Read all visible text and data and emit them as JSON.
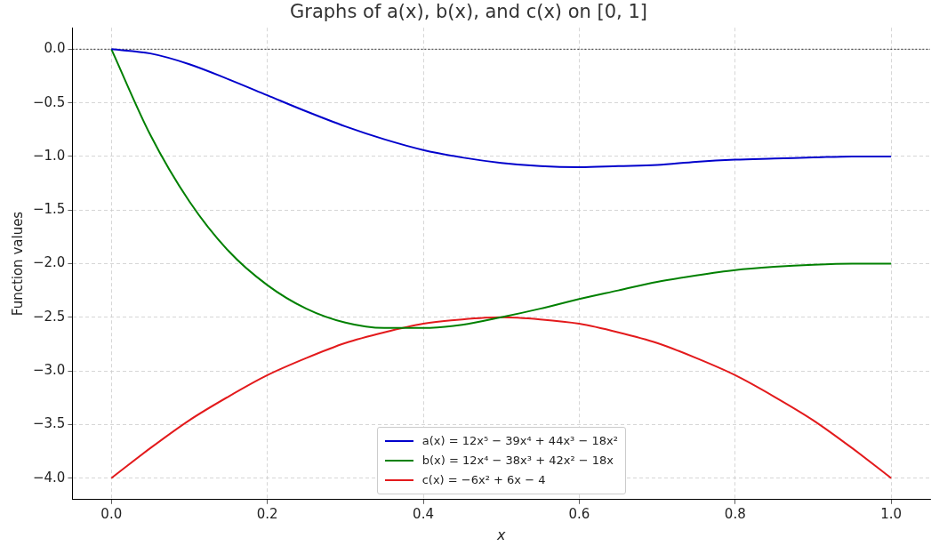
{
  "chart_data": {
    "type": "line",
    "title": "Graphs of a(x), b(x), and c(x) on [0, 1]",
    "xlabel": "x",
    "ylabel": "Function values",
    "x": [
      0,
      0.05,
      0.1,
      0.15,
      0.2,
      0.25,
      0.3,
      0.35,
      0.4,
      0.45,
      0.5,
      0.55,
      0.6,
      0.65,
      0.7,
      0.75,
      0.8,
      0.85,
      0.9,
      0.95,
      1
    ],
    "series": [
      {
        "name": "a(x) = 12x⁵ − 39x⁴ + 44x³ − 18x²",
        "color": "#0000cc",
        "values": [
          0,
          -0.04,
          -0.14,
          -0.28,
          -0.43,
          -0.58,
          -0.72,
          -0.84,
          -0.94,
          -1.01,
          -1.06,
          -1.09,
          -1.1,
          -1.09,
          -1.08,
          -1.05,
          -1.03,
          -1.02,
          -1.01,
          -1,
          -1
        ]
      },
      {
        "name": "b(x) = 12x⁴ − 38x³ + 42x² − 18x",
        "color": "#008000",
        "values": [
          0,
          -0.8,
          -1.42,
          -1.88,
          -2.2,
          -2.42,
          -2.55,
          -2.6,
          -2.6,
          -2.57,
          -2.5,
          -2.42,
          -2.33,
          -2.25,
          -2.17,
          -2.11,
          -2.06,
          -2.03,
          -2.01,
          -2,
          -2
        ]
      },
      {
        "name": "c(x) = −6x² + 6x − 4",
        "color": "#e31a1c",
        "values": [
          -4,
          -3.72,
          -3.46,
          -3.24,
          -3.04,
          -2.88,
          -2.74,
          -2.64,
          -2.56,
          -2.52,
          -2.5,
          -2.52,
          -2.56,
          -2.64,
          -2.74,
          -2.88,
          -3.04,
          -3.24,
          -3.46,
          -3.72,
          -4
        ]
      }
    ],
    "xlim": [
      -0.05,
      1.05
    ],
    "xticks": [
      {
        "value": 0,
        "label": "0.0"
      },
      {
        "value": 0.2,
        "label": "0.2"
      },
      {
        "value": 0.4,
        "label": "0.4"
      },
      {
        "value": 0.6,
        "label": "0.6"
      },
      {
        "value": 0.8,
        "label": "0.8"
      },
      {
        "value": 1,
        "label": "1.0"
      }
    ],
    "ylim": [
      -4.2,
      0.2
    ],
    "yticks": [
      {
        "value": -4,
        "label": "−4.0"
      },
      {
        "value": -3.5,
        "label": "−3.5"
      },
      {
        "value": -3,
        "label": "−3.0"
      },
      {
        "value": -2.5,
        "label": "−2.5"
      },
      {
        "value": -2,
        "label": "−2.0"
      },
      {
        "value": -1.5,
        "label": "−1.5"
      },
      {
        "value": -1,
        "label": "−1.0"
      },
      {
        "value": -0.5,
        "label": "−0.5"
      },
      {
        "value": 0,
        "label": "0.0"
      }
    ],
    "ref_lines": [
      {
        "axis": "y",
        "value": 0,
        "color": "#000000",
        "line_style": "dotted"
      }
    ],
    "grid": true,
    "legend": "bottom",
    "marker": "none",
    "line_style": "solid"
  }
}
